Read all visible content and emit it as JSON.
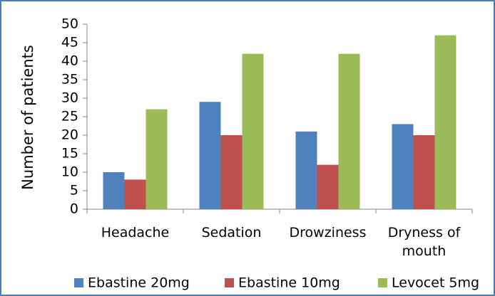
{
  "chart_data": {
    "type": "bar",
    "y_label": "Number of patients",
    "categories": [
      "Headache",
      "Sedation",
      "Drowziness",
      "Dryness of mouth"
    ],
    "series": [
      {
        "name": "Ebastine 20mg",
        "color": "#4f81bd",
        "values": [
          10,
          29,
          21,
          23
        ]
      },
      {
        "name": "Ebastine 10mg",
        "color": "#c0504d",
        "values": [
          8,
          20,
          12,
          20
        ]
      },
      {
        "name": "Levocet 5mg",
        "color": "#9bbb59",
        "values": [
          27,
          42,
          42,
          47
        ]
      }
    ],
    "ylim": [
      0,
      50
    ],
    "yticks": [
      0,
      5,
      10,
      15,
      20,
      25,
      30,
      35,
      40,
      45,
      50
    ],
    "grid": false,
    "legend": "bottom"
  }
}
